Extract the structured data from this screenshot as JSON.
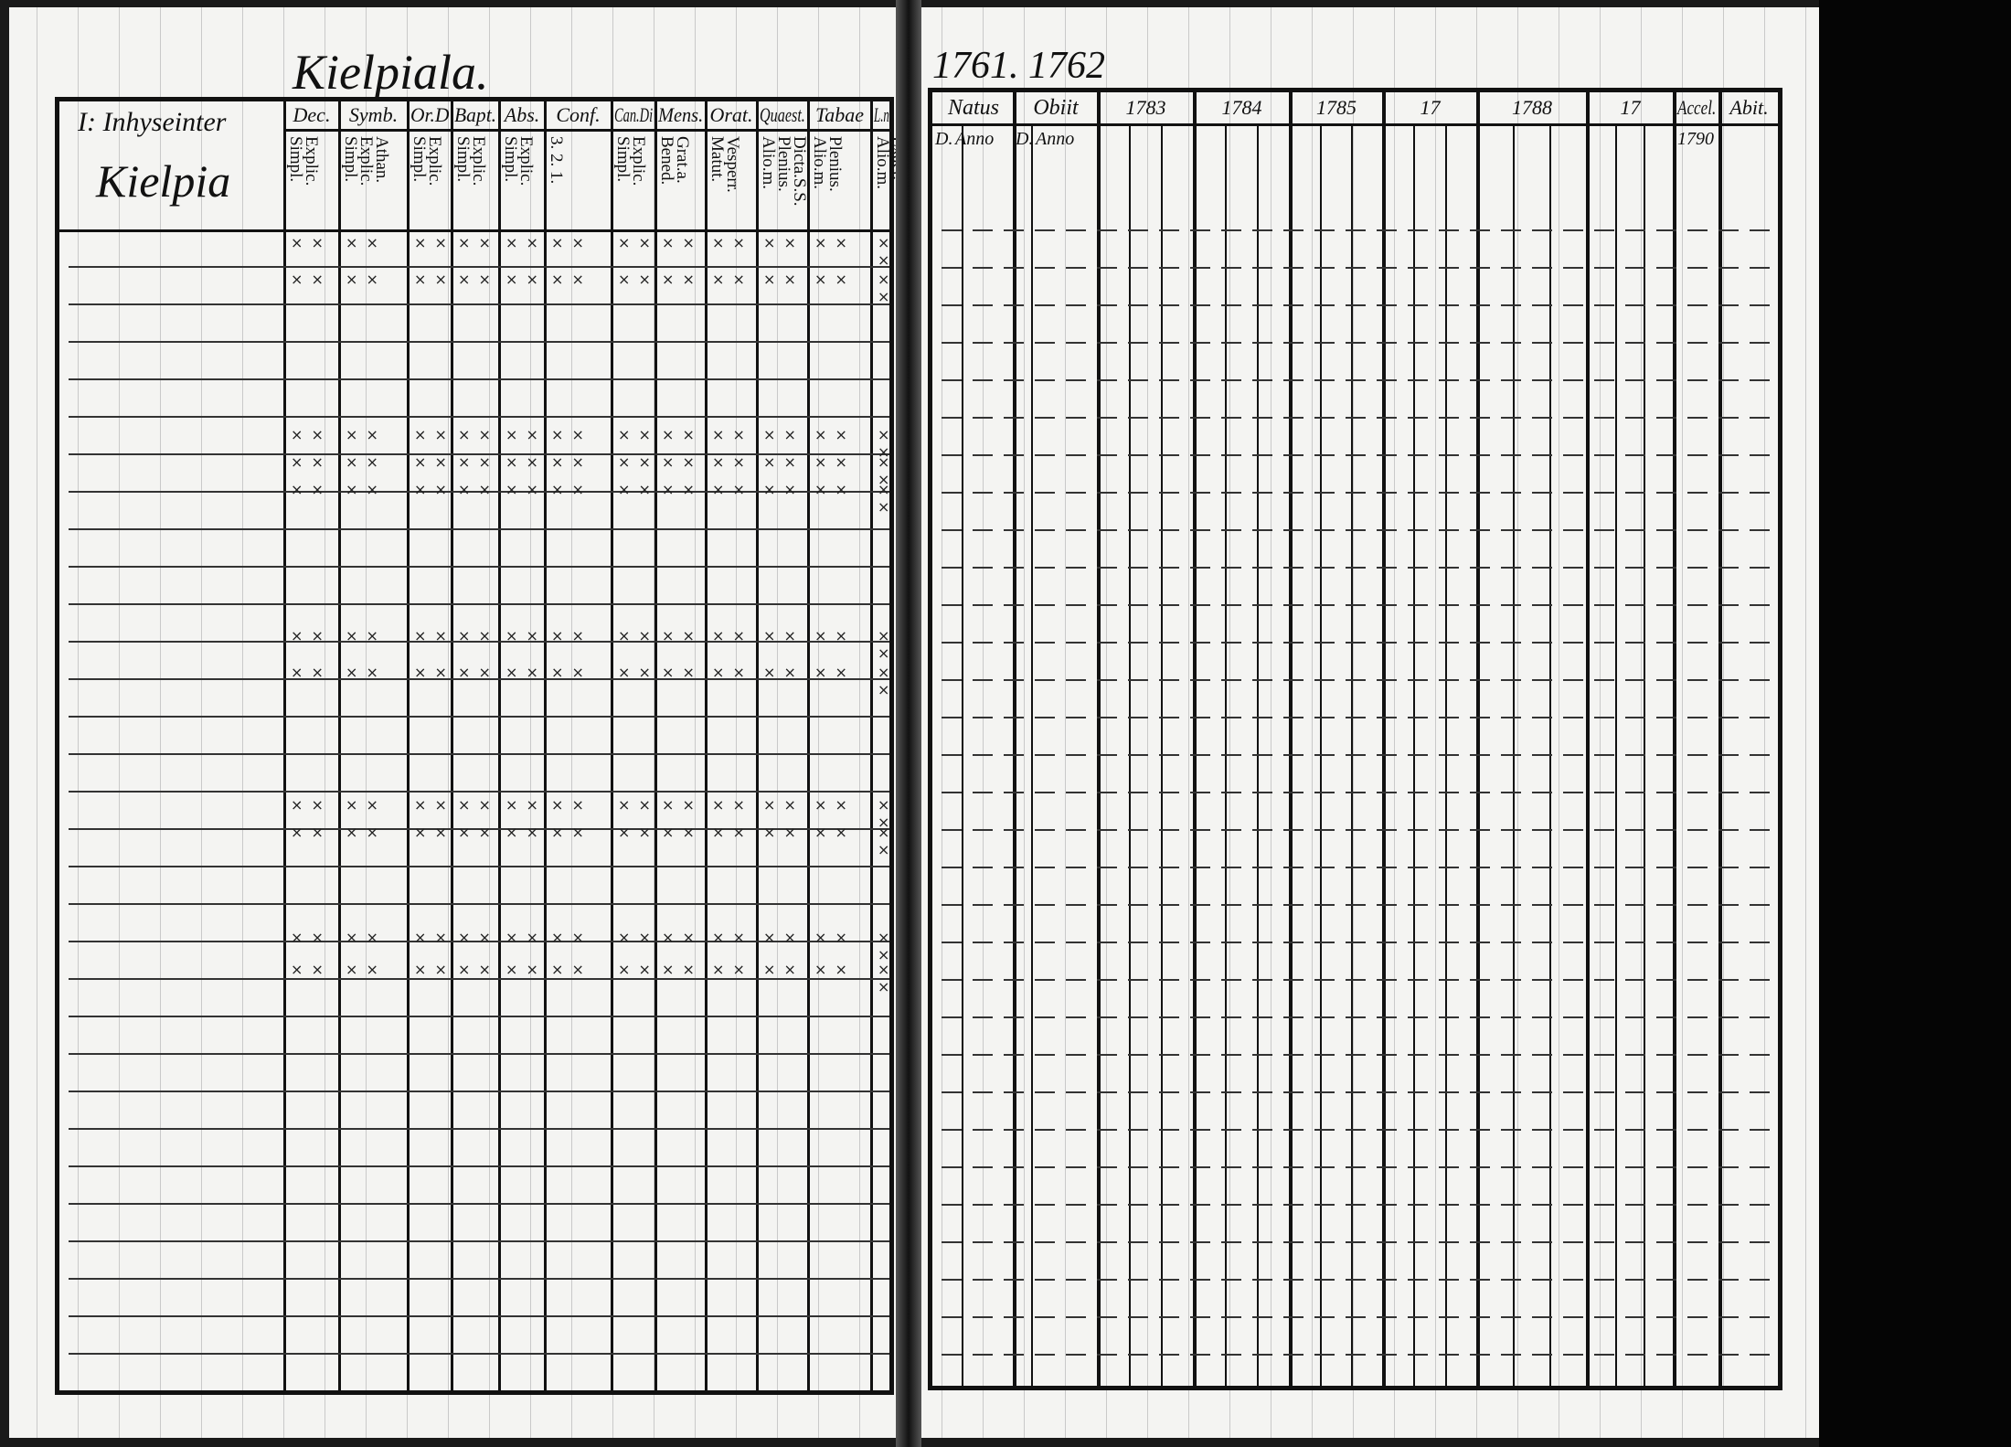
{
  "left_page": {
    "title": "Kielpiala.",
    "section_label": "I: Inhyseinter",
    "village": "Kielpia",
    "columns": [
      {
        "head": "Dec.",
        "sub": "Explic. Simpl."
      },
      {
        "head": "Symb.",
        "sub": "Athan. Explic. Simpl."
      },
      {
        "head": "Or.D",
        "sub": "Explic. Simpl."
      },
      {
        "head": "Bapt.",
        "sub": "Explic. Simpl."
      },
      {
        "head": "Abs.",
        "sub": "Explic. Simpl."
      },
      {
        "head": "Conf.",
        "sub": "3. 2. 1."
      },
      {
        "head": "Can.Di",
        "sub": "Explic. Simpl."
      },
      {
        "head": "Mens.",
        "sub": "Grat.a. Bened."
      },
      {
        "head": "Orat.",
        "sub": "Vesperr. Matut."
      },
      {
        "head": "Quaest.",
        "sub": "Dicta.S.S. Plenius. Alio.m."
      },
      {
        "head": "Tabae",
        "sub": "Plenius. Alio.m."
      },
      {
        "head": "L.n.",
        "sub": "Exact. Alio.m."
      }
    ]
  },
  "right_page": {
    "title": "1761. 1762",
    "columns": [
      {
        "head": "Natus",
        "subs": [
          "D.",
          "Anno"
        ]
      },
      {
        "head": "Obiit",
        "subs": [
          "D.",
          "Anno"
        ]
      },
      {
        "head": "1783"
      },
      {
        "head": "1784"
      },
      {
        "head": "1785"
      },
      {
        "head": "17"
      },
      {
        "head": "1788"
      },
      {
        "head": "17"
      },
      {
        "head": "Accel.",
        "subs": [
          "1790"
        ]
      },
      {
        "head": "Abit."
      }
    ]
  }
}
